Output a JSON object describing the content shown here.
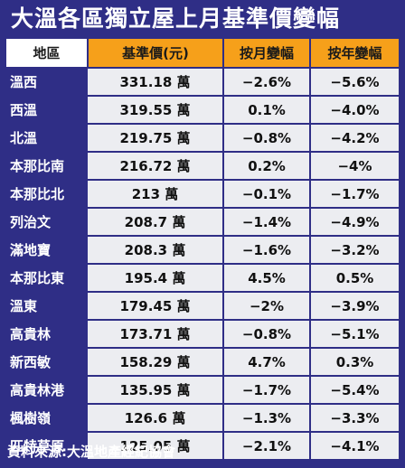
{
  "title": "大溫各區獨立屋上月基準價變幅",
  "headers": [
    "地區",
    "基準價(元)",
    "按月變幅",
    "按年變幅"
  ],
  "rows": [
    {
      "district": "溫西",
      "price": "331.18 萬",
      "mom": "−2.6%",
      "yoy": "−5.6%"
    },
    {
      "district": "西溫",
      "price": "319.55 萬",
      "mom": "0.1%",
      "yoy": "−4.0%"
    },
    {
      "district": "北溫",
      "price": "219.75 萬",
      "mom": "−0.8%",
      "yoy": "−4.2%"
    },
    {
      "district": "本那比南",
      "price": "216.72 萬",
      "mom": "0.2%",
      "yoy": "−4%"
    },
    {
      "district": "本那比北",
      "price": "213 萬",
      "mom": "−0.1%",
      "yoy": "−1.7%"
    },
    {
      "district": "列治文",
      "price": "208.7 萬",
      "mom": "−1.4%",
      "yoy": "−4.9%"
    },
    {
      "district": "滿地寶",
      "price": "208.3 萬",
      "mom": "−1.6%",
      "yoy": "−3.2%"
    },
    {
      "district": "本那比東",
      "price": "195.4 萬",
      "mom": "4.5%",
      "yoy": "0.5%"
    },
    {
      "district": "溫東",
      "price": "179.45 萬",
      "mom": "−2%",
      "yoy": "−3.9%"
    },
    {
      "district": "高貴林",
      "price": "173.71 萬",
      "mom": "−0.8%",
      "yoy": "−5.1%"
    },
    {
      "district": "新西敏",
      "price": "158.29 萬",
      "mom": "4.7%",
      "yoy": "0.3%"
    },
    {
      "district": "高貴林港",
      "price": "135.95 萬",
      "mom": "−1.7%",
      "yoy": "−5.4%"
    },
    {
      "district": "楓樹嶺",
      "price": "126.6 萬",
      "mom": "−1.3%",
      "yoy": "−3.3%"
    },
    {
      "district": "匹特草原",
      "price": "125.05 萬",
      "mom": "−2.1%",
      "yoy": "−4.1%"
    }
  ],
  "source": "資料來源:大溫地產經紀協會",
  "colors": {
    "navy": "#2f2e86",
    "orange": "#f6a01a",
    "cell": "#ecedf1"
  }
}
